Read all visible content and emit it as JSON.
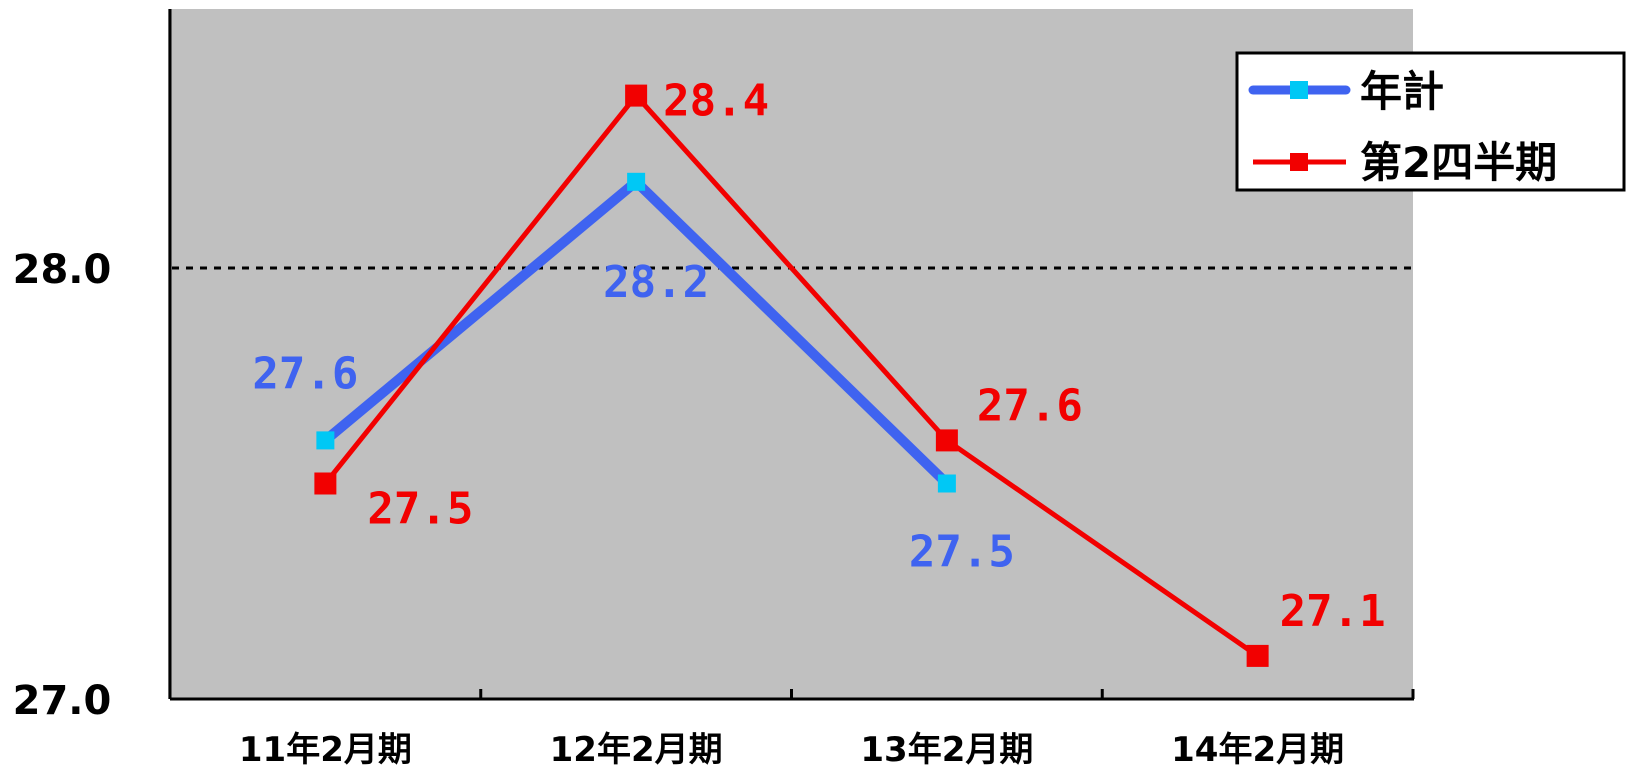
{
  "chart_data": {
    "type": "line",
    "categories": [
      "11年2月期",
      "12年2月期",
      "13年2月期",
      "14年2月期"
    ],
    "ylim": [
      27.0,
      28.5
    ],
    "yticks": [
      {
        "value": 27.0,
        "label": "27.0"
      },
      {
        "value": 28.0,
        "label": "28.0"
      }
    ],
    "reference_line": 28.0,
    "series": [
      {
        "name": "年計",
        "values": [
          27.6,
          28.2,
          27.5,
          null
        ],
        "labels": [
          "27.6",
          "28.2",
          "27.5",
          ""
        ],
        "line_color": "#3F63F0",
        "marker_color": "#00C8F5",
        "label_color": "#3F63F0"
      },
      {
        "name": "第2四半期",
        "values": [
          27.5,
          28.4,
          27.6,
          27.1
        ],
        "labels": [
          "27.5",
          "28.4",
          "27.6",
          "27.1"
        ],
        "line_color": "#F20000",
        "marker_color": "#F20000",
        "label_color": "#F20000"
      }
    ],
    "legend_position": "top-right",
    "plot_background": "#C0C0C0"
  }
}
